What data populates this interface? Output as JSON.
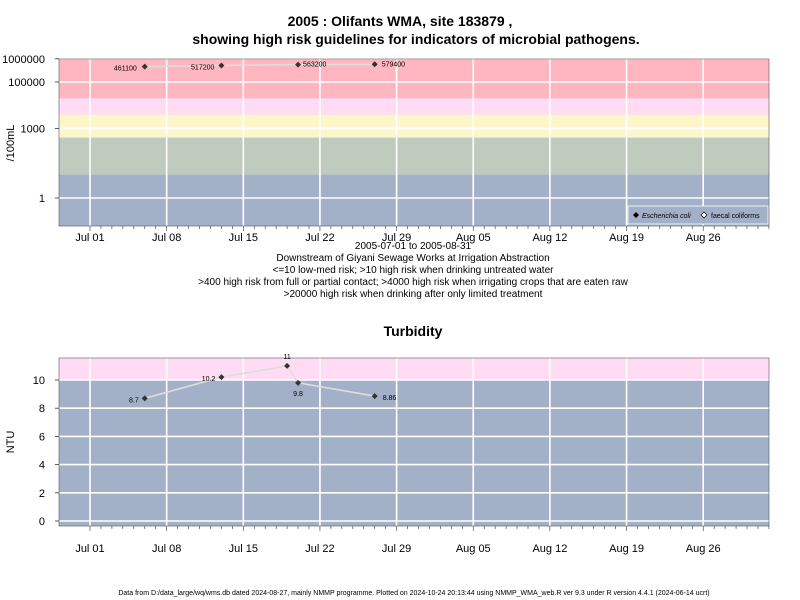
{
  "title_line1": "2005 : Olifants WMA, site 183879 ,",
  "title_line2": "showing high risk guidelines for indicators of microbial pathogens.",
  "footer": "Data from D:/data_large/wq/wms.db dated 2024-08-27, mainly NMMP programme. Plotted on 2024-10-24 20:13:44 using NMMP_WMA_web.R ver 9.3 under R version 4.4.1 (2024-06-14 ucrt)",
  "colors": {
    "panel_bg": "#a3b1c8",
    "band_green": "#c0cbc0",
    "band_yellow": "#fdf6cb",
    "band_pink": "#ffdcf3",
    "band_red": "#ffb6c1",
    "line": "#dddddd",
    "marker": "#333333"
  },
  "chart_data": [
    {
      "type": "line",
      "title": "",
      "ylabel": "/100mL",
      "y_scale": "log",
      "y_ticks": [
        "1",
        "1000",
        "100000",
        "1000000"
      ],
      "x_ticks": [
        "Jul 01",
        "Jul 08",
        "Jul 15",
        "Jul 22",
        "Jul 29",
        "Aug 05",
        "Aug 12",
        "Aug 19",
        "Aug 26"
      ],
      "x_range_label": "2005-07-01 to 2005-08-31",
      "site_description": "Downstream of Giyani Sewage Works at Irrigation Abstraction",
      "guideline_notes": [
        "<=10 low-med risk; >10 high risk when drinking untreated water",
        ">400 high risk from full or partial contact; >4000 high risk when irrigating crops that are eaten raw",
        ">20000 high risk when drinking after only limited treatment"
      ],
      "thresholds": [
        10,
        400,
        4000,
        20000
      ],
      "legend": {
        "position": "bottom-right",
        "entries": [
          {
            "label": "Escherichia coli",
            "marker": "filled-diamond"
          },
          {
            "label": "faecal coliforms",
            "marker": "open-diamond"
          }
        ]
      },
      "series": [
        {
          "name": "Escherichia coli",
          "points": [
            {
              "x": "2005-07-06",
              "y": 461100,
              "label": "461100"
            },
            {
              "x": "2005-07-13",
              "y": 517200,
              "label": "517200"
            },
            {
              "x": "2005-07-20",
              "y": 563200,
              "label": "563200"
            },
            {
              "x": "2005-07-27",
              "y": 579400,
              "label": "579400"
            }
          ]
        }
      ]
    },
    {
      "type": "line",
      "title": "Turbidity",
      "ylabel": "NTU",
      "y_scale": "linear",
      "y_ticks": [
        "0",
        "2",
        "4",
        "6",
        "8",
        "10"
      ],
      "x_ticks": [
        "Jul 01",
        "Jul 08",
        "Jul 15",
        "Jul 22",
        "Jul 29",
        "Aug 05",
        "Aug 12",
        "Aug 19",
        "Aug 26"
      ],
      "threshold": 10,
      "series": [
        {
          "name": "Turbidity",
          "points": [
            {
              "x": "2005-07-06",
              "y": 8.7,
              "label": "8.7"
            },
            {
              "x": "2005-07-13",
              "y": 10.2,
              "label": "10.2"
            },
            {
              "x": "2005-07-19",
              "y": 11,
              "label": "11"
            },
            {
              "x": "2005-07-20",
              "y": 9.8,
              "label": "9.8"
            },
            {
              "x": "2005-07-27",
              "y": 8.86,
              "label": "8.86"
            }
          ]
        }
      ]
    }
  ]
}
